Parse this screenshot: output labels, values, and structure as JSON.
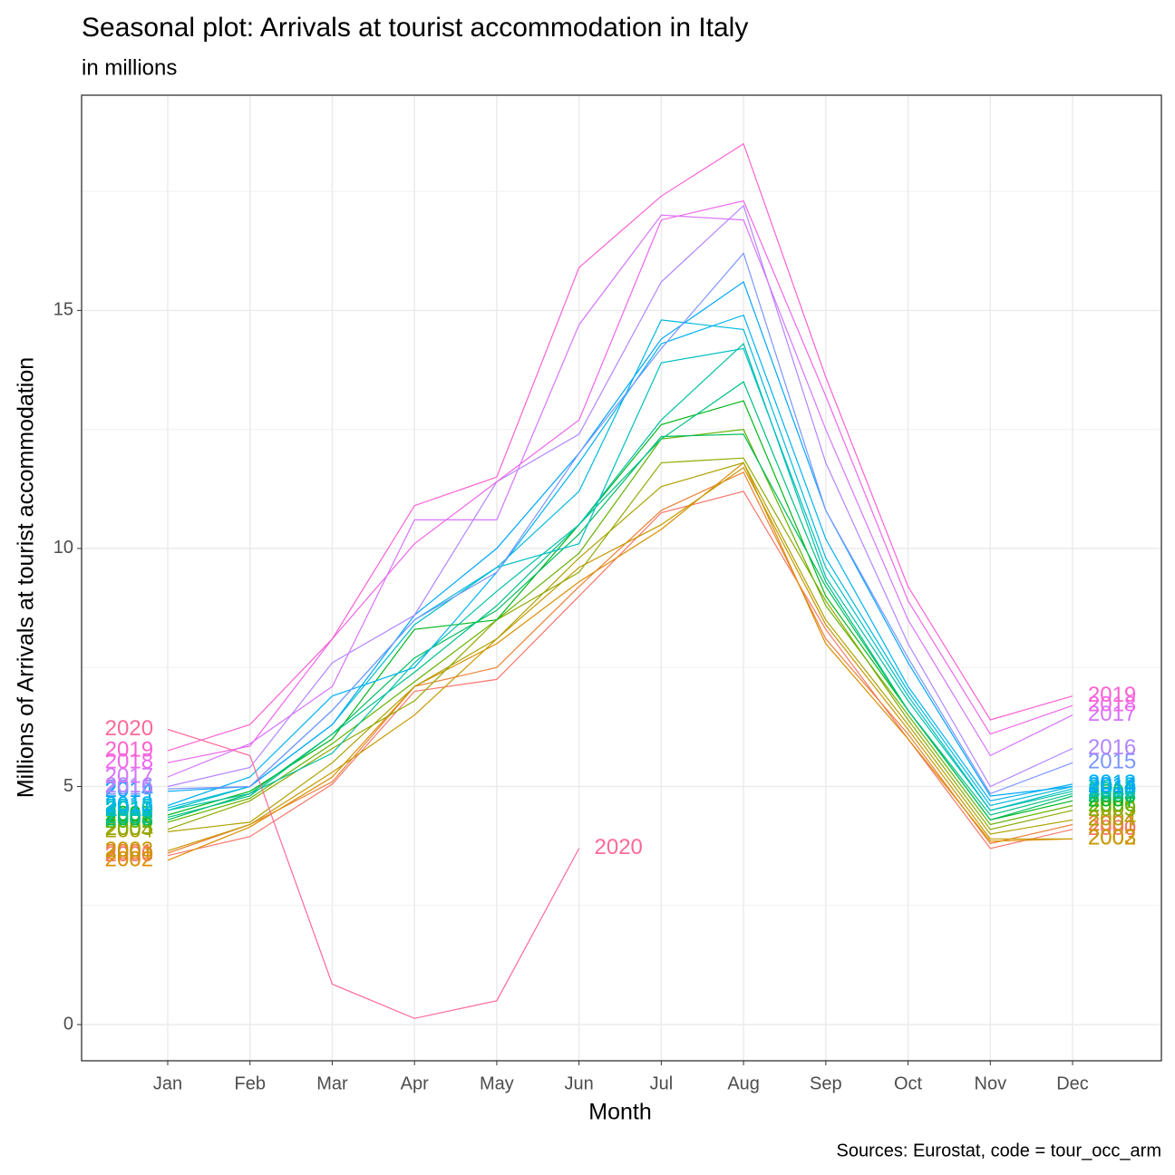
{
  "chart_data": {
    "type": "line",
    "title": "Seasonal plot: Arrivals at tourist accommodation in Italy",
    "subtitle": "in millions",
    "x_label": "Month",
    "y_label": "Millions of Arrivals at tourist accommodation",
    "caption": "Sources: Eurostat, code = tour_occ_arm",
    "categories": [
      "Jan",
      "Feb",
      "Mar",
      "Apr",
      "May",
      "Jun",
      "Jul",
      "Aug",
      "Sep",
      "Oct",
      "Nov",
      "Dec"
    ],
    "ylim": [
      -0.76,
      19.52
    ],
    "yticks": [
      0,
      5,
      10,
      15
    ],
    "yminor_ticks": [
      2.5,
      7.5,
      12.5,
      17.5
    ],
    "grid": true,
    "series": [
      {
        "name": "2000",
        "color": "#F8766D",
        "values": [
          3.55,
          3.95,
          5.05,
          7.0,
          7.25,
          9.0,
          10.75,
          11.2,
          8.3,
          6.0,
          3.7,
          4.1
        ]
      },
      {
        "name": "2001",
        "color": "#EC8239",
        "values": [
          3.6,
          4.2,
          5.1,
          7.1,
          7.5,
          9.2,
          10.8,
          11.6,
          8.1,
          6.1,
          3.8,
          4.2
        ]
      },
      {
        "name": "2002",
        "color": "#DB8E00",
        "values": [
          3.45,
          4.15,
          5.2,
          7.1,
          8.0,
          9.3,
          10.4,
          11.8,
          8.0,
          6.0,
          3.85,
          3.9
        ]
      },
      {
        "name": "2003",
        "color": "#C79800",
        "values": [
          3.65,
          4.2,
          5.3,
          6.5,
          8.1,
          9.6,
          10.5,
          11.7,
          8.4,
          6.2,
          3.9,
          3.9
        ]
      },
      {
        "name": "2004",
        "color": "#AEA200",
        "values": [
          4.05,
          4.25,
          5.5,
          7.1,
          8.1,
          9.8,
          11.3,
          11.8,
          8.5,
          6.3,
          4.0,
          4.3
        ]
      },
      {
        "name": "2005",
        "color": "#8FAA00",
        "values": [
          4.1,
          4.7,
          5.8,
          6.8,
          8.5,
          9.5,
          11.8,
          11.9,
          8.9,
          6.4,
          4.1,
          4.5
        ]
      },
      {
        "name": "2006",
        "color": "#64B200",
        "values": [
          4.25,
          4.75,
          5.9,
          7.2,
          8.5,
          9.9,
          12.3,
          12.5,
          8.8,
          6.5,
          4.2,
          4.6
        ]
      },
      {
        "name": "2007",
        "color": "#00B81B",
        "values": [
          4.4,
          4.9,
          6.0,
          8.3,
          8.5,
          10.5,
          12.6,
          13.1,
          9.0,
          6.6,
          4.3,
          4.7
        ]
      },
      {
        "name": "2008",
        "color": "#00BD5C",
        "values": [
          4.3,
          4.85,
          6.1,
          7.7,
          8.7,
          10.3,
          12.35,
          12.4,
          9.2,
          6.6,
          4.3,
          4.8
        ]
      },
      {
        "name": "2009",
        "color": "#00C086",
        "values": [
          4.35,
          4.8,
          6.1,
          7.4,
          8.8,
          10.5,
          12.3,
          13.5,
          9.3,
          6.6,
          4.4,
          4.85
        ]
      },
      {
        "name": "2010",
        "color": "#00C1A7",
        "values": [
          4.5,
          4.85,
          5.7,
          7.6,
          9.1,
          10.5,
          12.7,
          14.3,
          9.4,
          6.8,
          4.5,
          4.9
        ]
      },
      {
        "name": "2011",
        "color": "#00BFC4",
        "values": [
          4.5,
          5.0,
          6.3,
          8.4,
          9.6,
          10.1,
          13.9,
          14.2,
          9.6,
          6.9,
          4.5,
          4.95
        ]
      },
      {
        "name": "2012",
        "color": "#00BADE",
        "values": [
          4.55,
          5.0,
          6.6,
          8.5,
          9.6,
          11.2,
          14.8,
          14.6,
          9.8,
          7.0,
          4.6,
          5.0
        ]
      },
      {
        "name": "2013",
        "color": "#00B2F3",
        "values": [
          4.6,
          5.2,
          6.9,
          7.5,
          9.5,
          11.8,
          14.3,
          14.9,
          10.2,
          7.1,
          4.7,
          5.05
        ]
      },
      {
        "name": "2014",
        "color": "#00A6FF",
        "values": [
          4.9,
          5.0,
          6.3,
          8.6,
          10.0,
          12.0,
          14.4,
          15.6,
          10.8,
          7.6,
          4.8,
          5.0
        ]
      },
      {
        "name": "2015",
        "color": "#7C96FF",
        "values": [
          4.95,
          5.0,
          6.6,
          8.5,
          9.5,
          12.0,
          14.2,
          16.2,
          10.8,
          7.7,
          4.85,
          5.5
        ]
      },
      {
        "name": "2016",
        "color": "#B385FF",
        "values": [
          5.0,
          5.4,
          7.6,
          8.6,
          11.4,
          12.4,
          15.6,
          17.2,
          11.8,
          8.0,
          5.0,
          5.8
        ]
      },
      {
        "name": "2017",
        "color": "#D874FD",
        "values": [
          5.2,
          5.9,
          7.1,
          10.6,
          10.6,
          14.7,
          17.0,
          16.9,
          12.5,
          8.5,
          5.65,
          6.5
        ]
      },
      {
        "name": "2018",
        "color": "#EF67EB",
        "values": [
          5.5,
          5.85,
          8.1,
          10.1,
          11.4,
          12.7,
          16.9,
          17.3,
          13.2,
          8.9,
          6.1,
          6.7
        ]
      },
      {
        "name": "2019",
        "color": "#FD61D3",
        "values": [
          5.75,
          6.3,
          8.1,
          10.9,
          11.5,
          15.9,
          17.4,
          18.5,
          13.6,
          9.2,
          6.4,
          6.9
        ]
      },
      {
        "name": "2020",
        "color": "#FF6A98",
        "values": [
          6.2,
          5.65,
          0.85,
          0.13,
          0.5,
          3.7,
          null,
          null,
          null,
          null,
          null,
          null
        ]
      }
    ]
  }
}
